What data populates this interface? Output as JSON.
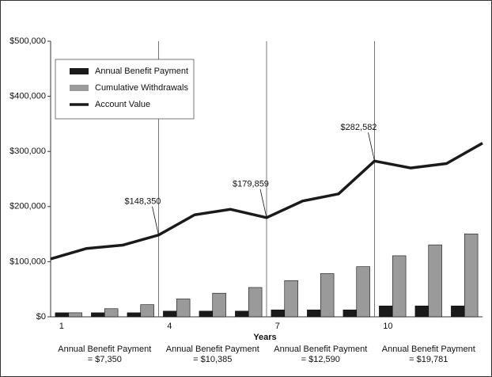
{
  "chart_data": {
    "type": "bar",
    "x_label": "Years",
    "x": [
      1,
      2,
      3,
      4,
      5,
      6,
      7,
      8,
      9,
      10,
      11,
      12
    ],
    "xlim": [
      0.5,
      12.5
    ],
    "xticks": [
      1,
      4,
      7,
      10
    ],
    "ylim": [
      0,
      500000
    ],
    "yticks": [
      {
        "value": 0,
        "label": "$0"
      },
      {
        "value": 100000,
        "label": "$100,000"
      },
      {
        "value": 200000,
        "label": "$200,000"
      },
      {
        "value": 300000,
        "label": "$300,000"
      },
      {
        "value": 400000,
        "label": "$400,000"
      },
      {
        "value": 500000,
        "label": "$500,000"
      }
    ],
    "legend": "top-left",
    "series": [
      {
        "name": "Annual Benefit Payment",
        "color": "#1a1a1a",
        "values": [
          7350,
          7350,
          7350,
          10385,
          10385,
          10385,
          12590,
          12590,
          12590,
          19781,
          19781,
          19781
        ]
      },
      {
        "name": "Cumulative Withdrawals",
        "color": "#9a9a9a",
        "values": [
          7350,
          14700,
          22050,
          32435,
          42820,
          53205,
          65795,
          78385,
          90975,
          110756,
          130537,
          150318
        ]
      },
      {
        "name": "Account Value",
        "color": "#1a1a1a",
        "type": "line",
        "x": [
          0.5,
          1.5,
          2.5,
          3.5,
          4.5,
          5.5,
          6.5,
          7.5,
          8.5,
          9.5,
          10.5,
          11.5,
          12.5
        ],
        "values": [
          105000,
          124000,
          130000,
          148350,
          185000,
          195000,
          179859,
          210000,
          223000,
          282582,
          270000,
          278000,
          315000
        ],
        "value_labels": [
          null,
          null,
          null,
          "$148,350",
          null,
          null,
          "$179,859",
          null,
          null,
          "$282,582",
          null,
          null,
          null
        ]
      }
    ],
    "group_labels": [
      [
        "Annual Benefit Payment",
        "= $7,350"
      ],
      [
        "Annual Benefit Payment",
        "= $10,385"
      ],
      [
        "Annual Benefit Payment",
        "= $12,590"
      ],
      [
        "Annual Benefit Payment",
        "= $19,781"
      ]
    ]
  }
}
